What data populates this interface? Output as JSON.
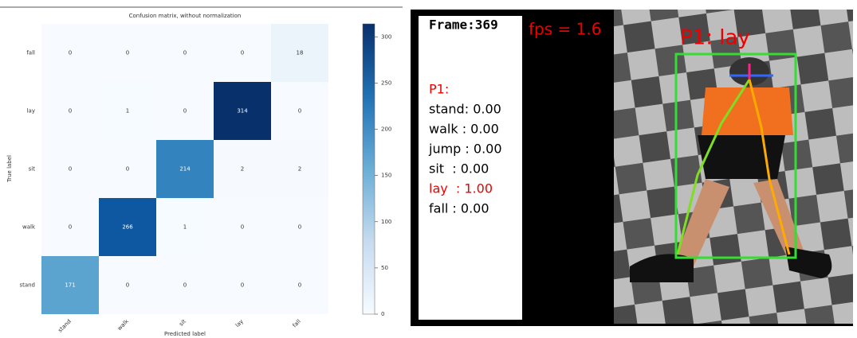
{
  "chart_data": {
    "type": "heatmap",
    "title": "Confusion matrix, without normalization",
    "x_label": "Predicted label",
    "y_label": "True label",
    "x_categories": [
      "stand",
      "walk",
      "sit",
      "lay",
      "fall"
    ],
    "y_categories": [
      "fall",
      "lay",
      "sit",
      "walk",
      "stand"
    ],
    "values": [
      [
        0,
        0,
        0,
        0,
        18
      ],
      [
        0,
        1,
        0,
        314,
        0
      ],
      [
        0,
        0,
        214,
        2,
        2
      ],
      [
        0,
        266,
        1,
        0,
        0
      ],
      [
        171,
        0,
        0,
        0,
        0
      ]
    ],
    "colormap": "Blues",
    "clim": [
      0,
      314
    ],
    "cticks": [
      0,
      50,
      100,
      150,
      200,
      250,
      300
    ]
  },
  "video": {
    "frame": "Frame:369",
    "fps": "fps = 1.6",
    "person": "P1:",
    "scores": [
      "stand: 0.00",
      "walk : 0.00",
      "jump : 0.00",
      "sit  : 0.00",
      "lay  : 1.00",
      "fall : 0.00"
    ],
    "overlay": "P1: lay"
  }
}
